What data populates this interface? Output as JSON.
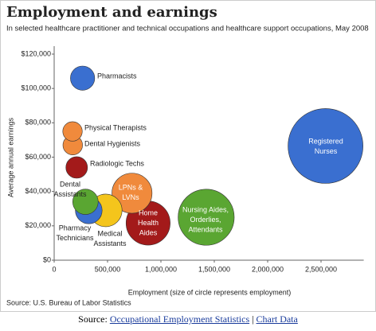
{
  "chart_data": {
    "type": "bubble",
    "title": "Employment and earnings",
    "subtitle": "In selected healthcare practitioner and technical occupations and healthcare support occupations, May 2008",
    "x_label": "Employment (size of circle represents employment)",
    "y_label": "Average annual earnings",
    "source": "Source: U.S. Bureau of Labor Statistics",
    "labels": [
      [
        "Pharmacists"
      ],
      [
        "Physical Therapists"
      ],
      [
        "Dental Hygienists"
      ],
      [
        "Radiologic Techs"
      ],
      [
        "Dental",
        "Assistants"
      ],
      [
        "Pharmacy",
        "Technicians"
      ],
      [
        "Medical",
        "Assistants"
      ],
      [
        "LPNs &",
        "LVNs"
      ],
      [
        "Home",
        "Health",
        "Aides"
      ],
      [
        "Nursing Aides,",
        "Orderlies,",
        "Attendants"
      ],
      [
        "Registered",
        "Nurses"
      ]
    ],
    "x": [
      266000,
      172000,
      174000,
      211000,
      293000,
      324000,
      483000,
      729000,
      880000,
      1424000,
      2542000
    ],
    "values": [
      106000,
      75000,
      67000,
      54000,
      34000,
      29000,
      29000,
      39000,
      21600,
      25000,
      66500
    ],
    "colors": [
      "#3a6fd0",
      "#f08a3c",
      "#f08a3c",
      "#a31a1a",
      "#5aa632",
      "#3a6fd0",
      "#f4c51c",
      "#f08a3c",
      "#a31a1a",
      "#5aa632",
      "#3a6fd0"
    ],
    "xlim": [
      0,
      2900000
    ],
    "xticks": [
      0,
      {
        "value": 500000,
        "label": "500,000"
      },
      {
        "value": 1000000,
        "label": "1,000,000"
      },
      {
        "value": 1500000,
        "label": "1,500,000"
      },
      {
        "value": 2000000,
        "label": "2,000,000"
      },
      {
        "value": 2500000,
        "label": "2,500,000"
      }
    ],
    "ylim": [
      0,
      120000
    ],
    "yticks": [
      {
        "value": 0,
        "label": "$0"
      },
      {
        "value": 20000,
        "label": "$20,000"
      },
      {
        "value": 40000,
        "label": "$40,000"
      },
      {
        "value": 60000,
        "label": "$60,000"
      },
      {
        "value": 80000,
        "label": "$80,000"
      },
      {
        "value": 100000,
        "label": "$100,000"
      },
      {
        "value": 120000,
        "label": "$120,000"
      }
    ],
    "grid": false
  },
  "footer": {
    "prefix": "Source:",
    "links": [
      "Occupational Employment Statistics",
      "Chart Data"
    ],
    "separator": "|"
  }
}
